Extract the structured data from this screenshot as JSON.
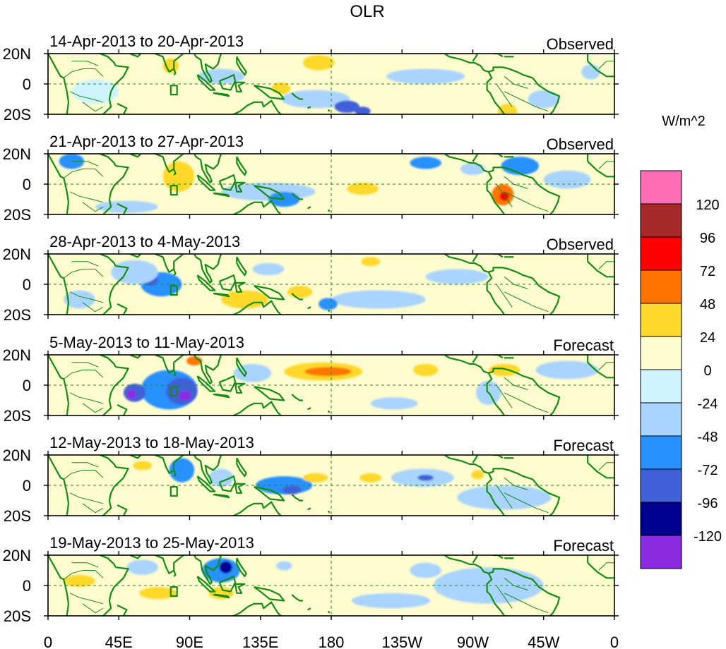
{
  "chart_data": {
    "type": "heatmap",
    "title": "OLR",
    "units": "W/m^2",
    "x_ticks": [
      "0",
      "45E",
      "90E",
      "135E",
      "180",
      "135W",
      "90W",
      "45W",
      "0"
    ],
    "x_range": [
      0,
      360
    ],
    "y_ticks": [
      "20N",
      "0",
      "20S"
    ],
    "y_range": [
      -20,
      20
    ],
    "colorbar": {
      "levels": [
        "120",
        "96",
        "72",
        "48",
        "24",
        "0",
        "-24",
        "-48",
        "-72",
        "-96",
        "-120"
      ],
      "colors": [
        "#ff6eb4",
        "#a52a2a",
        "#ff0000",
        "#ff7400",
        "#ffd82c",
        "#fffccf",
        "#cff4ff",
        "#a9d4ff",
        "#2891ff",
        "#4060d8",
        "#000090",
        "#8a2be2"
      ]
    },
    "panels": [
      {
        "label": "14-Apr-2013 to 20-Apr-2013",
        "kind": "Observed",
        "anomalies": [
          {
            "lon": 172,
            "lat": 14,
            "rlon": 10,
            "rlat": 5,
            "value": 30
          },
          {
            "lon": 78,
            "lat": 12,
            "rlon": 5,
            "rlat": 5,
            "value": 28
          },
          {
            "lon": 170,
            "lat": -10,
            "rlon": 22,
            "rlat": 6,
            "value": -40
          },
          {
            "lon": 190,
            "lat": -15,
            "rlon": 8,
            "rlat": 4,
            "value": -80
          },
          {
            "lon": 200,
            "lat": -18,
            "rlon": 5,
            "rlat": 3,
            "value": -75
          },
          {
            "lon": 240,
            "lat": 5,
            "rlon": 25,
            "rlat": 5,
            "value": -30
          },
          {
            "lon": 315,
            "lat": -10,
            "rlon": 10,
            "rlat": 6,
            "value": -35
          },
          {
            "lon": 292,
            "lat": -18,
            "rlon": 6,
            "rlat": 5,
            "value": 30
          },
          {
            "lon": 30,
            "lat": -5,
            "rlon": 15,
            "rlat": 8,
            "value": -20
          },
          {
            "lon": 110,
            "lat": 5,
            "rlon": 15,
            "rlat": 5,
            "value": -25
          },
          {
            "lon": 148,
            "lat": -3,
            "rlon": 6,
            "rlat": 4,
            "value": 30
          },
          {
            "lon": 345,
            "lat": 8,
            "rlon": 6,
            "rlat": 5,
            "value": -25
          }
        ]
      },
      {
        "label": "21-Apr-2013 to 27-Apr-2013",
        "kind": "Observed",
        "anomalies": [
          {
            "lon": 15,
            "lat": 15,
            "rlon": 8,
            "rlat": 5,
            "value": -60
          },
          {
            "lon": 83,
            "lat": 5,
            "rlon": 10,
            "rlat": 10,
            "value": 30
          },
          {
            "lon": 140,
            "lat": -5,
            "rlon": 30,
            "rlat": 6,
            "value": -30
          },
          {
            "lon": 150,
            "lat": -10,
            "rlon": 10,
            "rlat": 5,
            "value": -50
          },
          {
            "lon": 289,
            "lat": -7,
            "rlon": 7,
            "rlat": 7,
            "value": 60
          },
          {
            "lon": 290,
            "lat": -8,
            "rlon": 3,
            "rlat": 3,
            "value": 80
          },
          {
            "lon": 240,
            "lat": 14,
            "rlon": 10,
            "rlat": 4,
            "value": -55
          },
          {
            "lon": 300,
            "lat": 12,
            "rlon": 12,
            "rlat": 6,
            "value": -50
          },
          {
            "lon": 200,
            "lat": -3,
            "rlon": 10,
            "rlat": 4,
            "value": 25
          },
          {
            "lon": 50,
            "lat": -15,
            "rlon": 20,
            "rlat": 4,
            "value": -30
          },
          {
            "lon": 330,
            "lat": 3,
            "rlon": 15,
            "rlat": 6,
            "value": -25
          },
          {
            "lon": 270,
            "lat": 10,
            "rlon": 8,
            "rlat": 4,
            "value": -25
          }
        ]
      },
      {
        "label": "28-Apr-2013 to 4-May-2013",
        "kind": "Observed",
        "anomalies": [
          {
            "lon": 72,
            "lat": 0,
            "rlon": 13,
            "rlat": 8,
            "value": -70
          },
          {
            "lon": 65,
            "lat": 3,
            "rlon": 5,
            "rlat": 4,
            "value": -85
          },
          {
            "lon": 55,
            "lat": 8,
            "rlon": 15,
            "rlat": 8,
            "value": -30
          },
          {
            "lon": 125,
            "lat": -10,
            "rlon": 15,
            "rlat": 6,
            "value": 30
          },
          {
            "lon": 160,
            "lat": -5,
            "rlon": 8,
            "rlat": 4,
            "value": 30
          },
          {
            "lon": 205,
            "lat": 15,
            "rlon": 6,
            "rlat": 3,
            "value": 25
          },
          {
            "lon": 210,
            "lat": -10,
            "rlon": 30,
            "rlat": 6,
            "value": -30
          },
          {
            "lon": 178,
            "lat": -13,
            "rlon": 6,
            "rlat": 4,
            "value": -60
          },
          {
            "lon": 260,
            "lat": 5,
            "rlon": 20,
            "rlat": 5,
            "value": -30
          },
          {
            "lon": 20,
            "lat": -10,
            "rlon": 10,
            "rlat": 6,
            "value": -25
          },
          {
            "lon": 140,
            "lat": 10,
            "rlon": 10,
            "rlat": 4,
            "value": -25
          }
        ]
      },
      {
        "label": "5-May-2013 to 11-May-2013",
        "kind": "Forecast",
        "anomalies": [
          {
            "lon": 77,
            "lat": -3,
            "rlon": 18,
            "rlat": 13,
            "value": -50
          },
          {
            "lon": 85,
            "lat": -4,
            "rlon": 10,
            "rlat": 9,
            "value": -80
          },
          {
            "lon": 87,
            "lat": -7,
            "rlon": 4,
            "rlat": 3,
            "value": -125
          },
          {
            "lon": 55,
            "lat": -5,
            "rlon": 7,
            "rlat": 6,
            "value": -90
          },
          {
            "lon": 53,
            "lat": -6,
            "rlon": 3,
            "rlat": 3,
            "value": -130
          },
          {
            "lon": 93,
            "lat": 16,
            "rlon": 5,
            "rlat": 3,
            "value": 60
          },
          {
            "lon": 175,
            "lat": 9,
            "rlon": 25,
            "rlat": 6,
            "value": 30
          },
          {
            "lon": 178,
            "lat": 9,
            "rlon": 15,
            "rlat": 3,
            "value": 65
          },
          {
            "lon": 240,
            "lat": 10,
            "rlon": 8,
            "rlat": 4,
            "value": 30
          },
          {
            "lon": 220,
            "lat": -12,
            "rlon": 15,
            "rlat": 4,
            "value": -40
          },
          {
            "lon": 280,
            "lat": -5,
            "rlon": 8,
            "rlat": 8,
            "value": -40
          },
          {
            "lon": 130,
            "lat": 8,
            "rlon": 12,
            "rlat": 6,
            "value": -30
          },
          {
            "lon": 290,
            "lat": 10,
            "rlon": 10,
            "rlat": 4,
            "value": 28
          },
          {
            "lon": 330,
            "lat": 10,
            "rlon": 20,
            "rlat": 6,
            "value": -25
          }
        ]
      },
      {
        "label": "12-May-2013 to 18-May-2013",
        "kind": "Forecast",
        "anomalies": [
          {
            "lon": 85,
            "lat": 10,
            "rlon": 8,
            "rlat": 8,
            "value": -60
          },
          {
            "lon": 150,
            "lat": 0,
            "rlon": 18,
            "rlat": 6,
            "value": -60
          },
          {
            "lon": 155,
            "lat": -3,
            "rlon": 6,
            "rlat": 3,
            "value": -80
          },
          {
            "lon": 238,
            "lat": 5,
            "rlon": 20,
            "rlat": 6,
            "value": -45
          },
          {
            "lon": 240,
            "lat": 5,
            "rlon": 5,
            "rlat": 2,
            "value": -75
          },
          {
            "lon": 170,
            "lat": 5,
            "rlon": 8,
            "rlat": 3,
            "value": 30
          },
          {
            "lon": 205,
            "lat": 5,
            "rlon": 7,
            "rlat": 3,
            "value": 30
          },
          {
            "lon": 60,
            "lat": 13,
            "rlon": 6,
            "rlat": 3,
            "value": 25
          },
          {
            "lon": 273,
            "lat": 7,
            "rlon": 4,
            "rlat": 3,
            "value": 25
          },
          {
            "lon": 110,
            "lat": 5,
            "rlon": 8,
            "rlat": 6,
            "value": -40
          },
          {
            "lon": 290,
            "lat": -8,
            "rlon": 30,
            "rlat": 8,
            "value": -25
          }
        ]
      },
      {
        "label": "19-May-2013 to 25-May-2013",
        "kind": "Forecast",
        "anomalies": [
          {
            "lon": 110,
            "lat": 10,
            "rlon": 12,
            "rlat": 8,
            "value": -60
          },
          {
            "lon": 113,
            "lat": 12,
            "rlon": 4,
            "rlat": 4,
            "value": -100
          },
          {
            "lon": 70,
            "lat": -5,
            "rlon": 12,
            "rlat": 4,
            "value": 30
          },
          {
            "lon": 110,
            "lat": -5,
            "rlon": 8,
            "rlat": 4,
            "value": 30
          },
          {
            "lon": 218,
            "lat": -10,
            "rlon": 25,
            "rlat": 5,
            "value": -28
          },
          {
            "lon": 240,
            "lat": 10,
            "rlon": 10,
            "rlat": 5,
            "value": -35
          },
          {
            "lon": 280,
            "lat": 0,
            "rlon": 35,
            "rlat": 12,
            "value": -25
          },
          {
            "lon": 20,
            "lat": 3,
            "rlon": 10,
            "rlat": 4,
            "value": 25
          },
          {
            "lon": 60,
            "lat": 12,
            "rlon": 10,
            "rlat": 5,
            "value": -25
          },
          {
            "lon": 150,
            "lat": 13,
            "rlon": 5,
            "rlat": 3,
            "value": -25
          }
        ]
      }
    ]
  }
}
